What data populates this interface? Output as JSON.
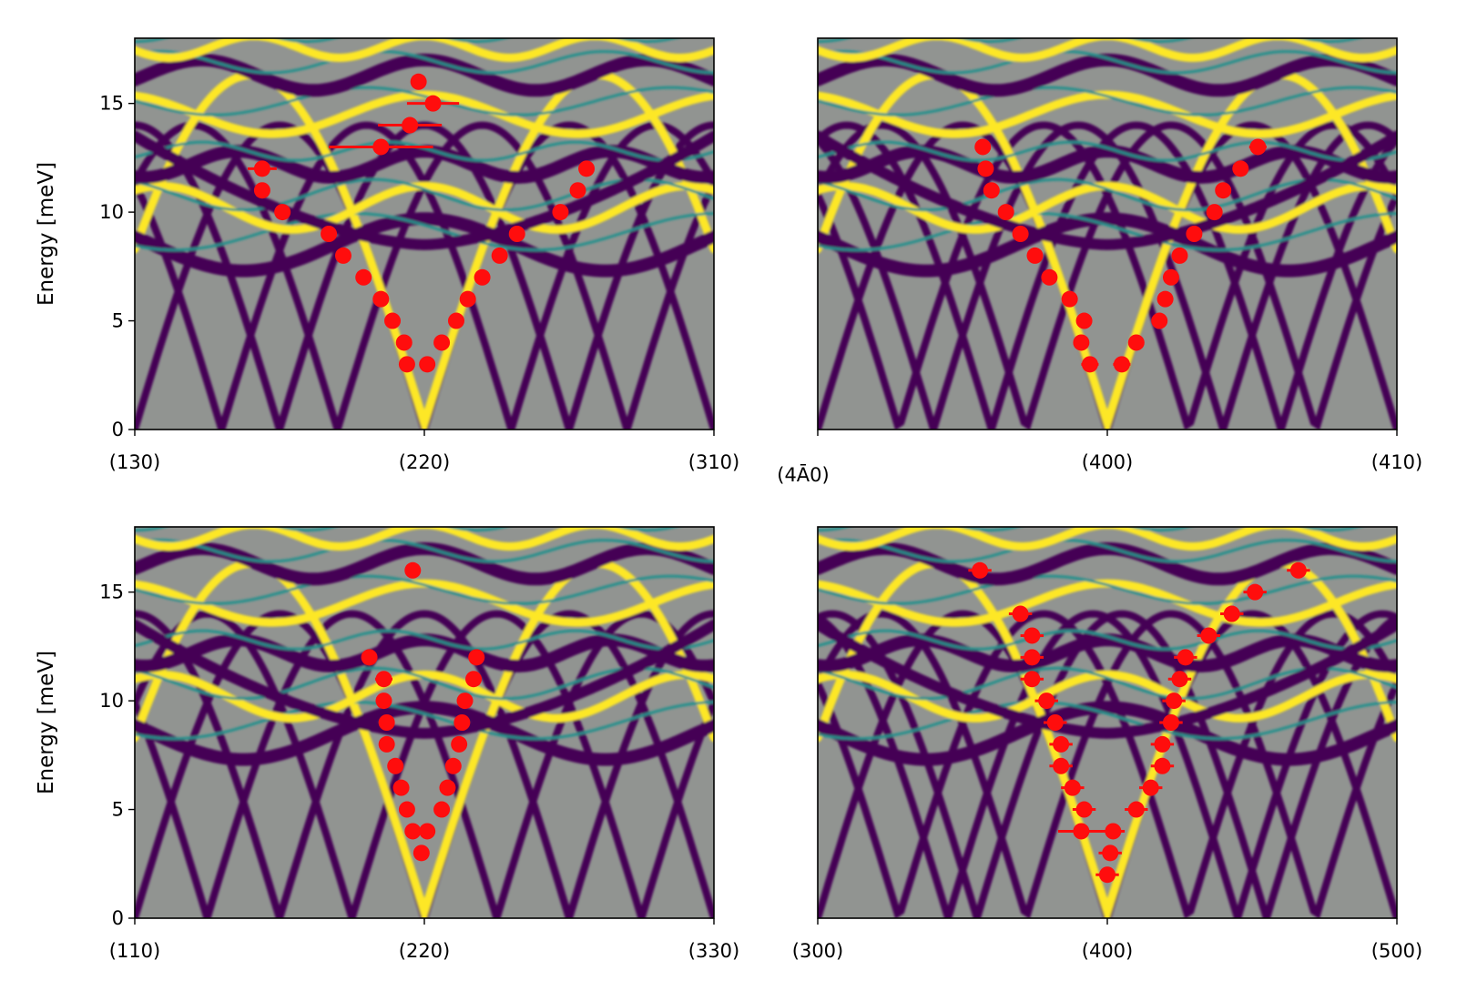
{
  "colors": {
    "background": "#919491",
    "band_dark": "#440154",
    "band_mid": "#21908c",
    "band_bright": "#fde725",
    "points": "#ff0d0d"
  },
  "chart_data": [
    {
      "type": "scatter",
      "panel": "top-left",
      "ylabel": "Energy [meV]",
      "ylim": [
        0,
        18
      ],
      "xlim": [
        0,
        2
      ],
      "yticks": [
        0,
        5,
        10,
        15
      ],
      "q_labels": [
        "(130)",
        "(220)",
        "(310)"
      ],
      "q_positions": [
        0,
        1,
        2
      ],
      "dispersion_minima": [
        0.5,
        0.7,
        1.0,
        1.3,
        1.5
      ],
      "points": [
        {
          "x": 0.98,
          "y": 16,
          "xerr": 0
        },
        {
          "x": 1.03,
          "y": 15,
          "xerr": 0.09
        },
        {
          "x": 0.95,
          "y": 14,
          "xerr": 0.11
        },
        {
          "x": 0.85,
          "y": 13,
          "xerr": 0.18
        },
        {
          "x": 0.44,
          "y": 12,
          "xerr": 0.05
        },
        {
          "x": 0.44,
          "y": 11,
          "xerr": 0
        },
        {
          "x": 0.51,
          "y": 10,
          "xerr": 0
        },
        {
          "x": 0.67,
          "y": 9,
          "xerr": 0
        },
        {
          "x": 0.72,
          "y": 8,
          "xerr": 0
        },
        {
          "x": 0.79,
          "y": 7,
          "xerr": 0
        },
        {
          "x": 0.85,
          "y": 6,
          "xerr": 0
        },
        {
          "x": 0.89,
          "y": 5,
          "xerr": 0
        },
        {
          "x": 0.93,
          "y": 4,
          "xerr": 0
        },
        {
          "x": 0.94,
          "y": 3,
          "xerr": 0
        },
        {
          "x": 1.01,
          "y": 3,
          "xerr": 0
        },
        {
          "x": 1.06,
          "y": 4,
          "xerr": 0
        },
        {
          "x": 1.11,
          "y": 5,
          "xerr": 0
        },
        {
          "x": 1.15,
          "y": 6,
          "xerr": 0
        },
        {
          "x": 1.2,
          "y": 7,
          "xerr": 0
        },
        {
          "x": 1.26,
          "y": 8,
          "xerr": 0
        },
        {
          "x": 1.32,
          "y": 9,
          "xerr": 0
        },
        {
          "x": 1.47,
          "y": 10,
          "xerr": 0
        },
        {
          "x": 1.53,
          "y": 11,
          "xerr": 0
        },
        {
          "x": 1.56,
          "y": 12,
          "xerr": 0
        }
      ]
    },
    {
      "type": "scatter",
      "panel": "top-right",
      "ylabel": "",
      "ylim": [
        0,
        18
      ],
      "xlim": [
        0,
        2
      ],
      "yticks": [],
      "q_labels": [
        "(4Ā0)",
        "(400)",
        "(410)"
      ],
      "q_positions": [
        0,
        1,
        2
      ],
      "dispersion_minima": [
        0.4,
        0.72,
        1.0,
        1.28,
        1.6
      ],
      "points": [
        {
          "x": 0.57,
          "y": 13,
          "xerr": 0
        },
        {
          "x": 0.58,
          "y": 12,
          "xerr": 0
        },
        {
          "x": 0.6,
          "y": 11,
          "xerr": 0
        },
        {
          "x": 0.65,
          "y": 10,
          "xerr": 0
        },
        {
          "x": 0.7,
          "y": 9,
          "xerr": 0
        },
        {
          "x": 0.75,
          "y": 8,
          "xerr": 0
        },
        {
          "x": 0.8,
          "y": 7,
          "xerr": 0
        },
        {
          "x": 0.87,
          "y": 6,
          "xerr": 0
        },
        {
          "x": 0.92,
          "y": 5,
          "xerr": 0
        },
        {
          "x": 0.91,
          "y": 4,
          "xerr": 0
        },
        {
          "x": 0.94,
          "y": 3,
          "xerr": 0.03
        },
        {
          "x": 1.05,
          "y": 3,
          "xerr": 0.03
        },
        {
          "x": 1.1,
          "y": 4,
          "xerr": 0
        },
        {
          "x": 1.18,
          "y": 5,
          "xerr": 0
        },
        {
          "x": 1.2,
          "y": 6,
          "xerr": 0
        },
        {
          "x": 1.22,
          "y": 7,
          "xerr": 0
        },
        {
          "x": 1.25,
          "y": 8,
          "xerr": 0
        },
        {
          "x": 1.3,
          "y": 9,
          "xerr": 0
        },
        {
          "x": 1.37,
          "y": 10,
          "xerr": 0
        },
        {
          "x": 1.4,
          "y": 11,
          "xerr": 0
        },
        {
          "x": 1.46,
          "y": 12,
          "xerr": 0
        },
        {
          "x": 1.52,
          "y": 13,
          "xerr": 0.03
        }
      ]
    },
    {
      "type": "scatter",
      "panel": "bottom-left",
      "ylabel": "Energy [meV]",
      "ylim": [
        0,
        18
      ],
      "xlim": [
        0,
        2
      ],
      "yticks": [
        0,
        5,
        10,
        15
      ],
      "q_labels": [
        "(110)",
        "(220)",
        "(330)"
      ],
      "q_positions": [
        0,
        1,
        2
      ],
      "dispersion_minima": [
        0.5,
        0.75,
        1.0,
        1.25,
        1.5
      ],
      "points": [
        {
          "x": 0.96,
          "y": 16,
          "xerr": 0
        },
        {
          "x": 0.81,
          "y": 12,
          "xerr": 0.02
        },
        {
          "x": 0.86,
          "y": 11,
          "xerr": 0.03
        },
        {
          "x": 0.86,
          "y": 10,
          "xerr": 0.02
        },
        {
          "x": 0.87,
          "y": 9,
          "xerr": 0.02
        },
        {
          "x": 0.87,
          "y": 8,
          "xerr": 0.02
        },
        {
          "x": 0.9,
          "y": 7,
          "xerr": 0.02
        },
        {
          "x": 0.92,
          "y": 6,
          "xerr": 0.02
        },
        {
          "x": 0.94,
          "y": 5,
          "xerr": 0.02
        },
        {
          "x": 0.96,
          "y": 4,
          "xerr": 0.02
        },
        {
          "x": 0.99,
          "y": 3,
          "xerr": 0.02
        },
        {
          "x": 1.01,
          "y": 4,
          "xerr": 0.02
        },
        {
          "x": 1.06,
          "y": 5,
          "xerr": 0.02
        },
        {
          "x": 1.08,
          "y": 6,
          "xerr": 0.02
        },
        {
          "x": 1.1,
          "y": 7,
          "xerr": 0.02
        },
        {
          "x": 1.12,
          "y": 8,
          "xerr": 0.02
        },
        {
          "x": 1.13,
          "y": 9,
          "xerr": 0.02
        },
        {
          "x": 1.14,
          "y": 10,
          "xerr": 0.02
        },
        {
          "x": 1.17,
          "y": 11,
          "xerr": 0.02
        },
        {
          "x": 1.18,
          "y": 12,
          "xerr": 0.02
        }
      ]
    },
    {
      "type": "scatter",
      "panel": "bottom-right",
      "ylabel": "",
      "ylim": [
        0,
        18
      ],
      "xlim": [
        0,
        2
      ],
      "yticks": [],
      "q_labels": [
        "(300)",
        "(400)",
        "(500)"
      ],
      "q_positions": [
        0,
        1,
        2
      ],
      "dispersion_minima": [
        0.45,
        0.72,
        1.0,
        1.28,
        1.55
      ],
      "points": [
        {
          "x": 0.56,
          "y": 16,
          "xerr": 0.04
        },
        {
          "x": 0.7,
          "y": 14,
          "xerr": 0.04
        },
        {
          "x": 0.74,
          "y": 13,
          "xerr": 0.04
        },
        {
          "x": 0.74,
          "y": 12,
          "xerr": 0.04
        },
        {
          "x": 0.74,
          "y": 11,
          "xerr": 0.04
        },
        {
          "x": 0.79,
          "y": 10,
          "xerr": 0.04
        },
        {
          "x": 0.82,
          "y": 9,
          "xerr": 0.04
        },
        {
          "x": 0.84,
          "y": 8,
          "xerr": 0.04
        },
        {
          "x": 0.84,
          "y": 7,
          "xerr": 0.04
        },
        {
          "x": 0.88,
          "y": 6,
          "xerr": 0.04
        },
        {
          "x": 0.92,
          "y": 5,
          "xerr": 0.04
        },
        {
          "x": 0.91,
          "y": 4,
          "xerr": 0.08
        },
        {
          "x": 1.02,
          "y": 4,
          "xerr": 0.04
        },
        {
          "x": 1.01,
          "y": 3,
          "xerr": 0.04
        },
        {
          "x": 1.0,
          "y": 2,
          "xerr": 0.04
        },
        {
          "x": 1.1,
          "y": 5,
          "xerr": 0.04
        },
        {
          "x": 1.15,
          "y": 6,
          "xerr": 0.04
        },
        {
          "x": 1.19,
          "y": 7,
          "xerr": 0.04
        },
        {
          "x": 1.19,
          "y": 8,
          "xerr": 0.04
        },
        {
          "x": 1.22,
          "y": 9,
          "xerr": 0.04
        },
        {
          "x": 1.23,
          "y": 10,
          "xerr": 0.04
        },
        {
          "x": 1.25,
          "y": 11,
          "xerr": 0.04
        },
        {
          "x": 1.27,
          "y": 12,
          "xerr": 0.04
        },
        {
          "x": 1.35,
          "y": 13,
          "xerr": 0.04
        },
        {
          "x": 1.43,
          "y": 14,
          "xerr": 0.04
        },
        {
          "x": 1.51,
          "y": 15,
          "xerr": 0.04
        },
        {
          "x": 1.66,
          "y": 16,
          "xerr": 0.04
        }
      ]
    }
  ]
}
